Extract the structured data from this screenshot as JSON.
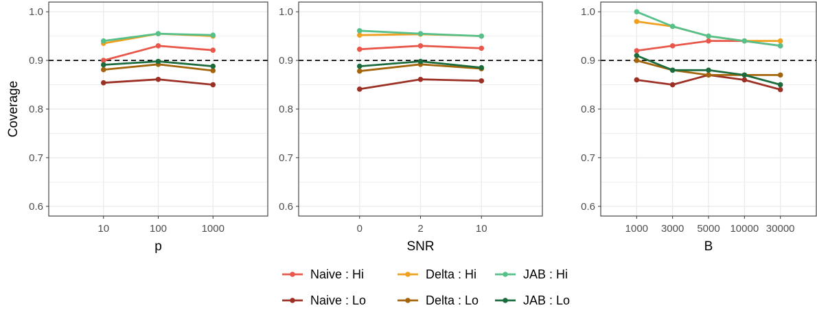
{
  "chart_data": [
    {
      "type": "line",
      "xlabel": "p",
      "ylabel": "Coverage",
      "categories": [
        "10",
        "100",
        "1000"
      ],
      "ylim": [
        0.58,
        1.02
      ],
      "yticks": [
        "0.6",
        "0.7",
        "0.8",
        "0.9",
        "1.0"
      ],
      "reference_line": 0.9,
      "series": [
        {
          "name": "Naive : Hi",
          "values": [
            0.9,
            0.93,
            0.921
          ]
        },
        {
          "name": "Delta : Hi",
          "values": [
            0.935,
            0.955,
            0.95
          ]
        },
        {
          "name": "JAB : Hi",
          "values": [
            0.94,
            0.955,
            0.952
          ]
        },
        {
          "name": "Naive : Lo",
          "values": [
            0.854,
            0.861,
            0.85
          ]
        },
        {
          "name": "Delta : Lo",
          "values": [
            0.881,
            0.892,
            0.879
          ]
        },
        {
          "name": "JAB : Lo",
          "values": [
            0.891,
            0.898,
            0.888
          ]
        }
      ]
    },
    {
      "type": "line",
      "xlabel": "SNR",
      "ylabel": "",
      "categories": [
        "0",
        "2",
        "10"
      ],
      "ylim": [
        0.58,
        1.02
      ],
      "yticks": [
        "0.6",
        "0.7",
        "0.8",
        "0.9",
        "1.0"
      ],
      "reference_line": 0.9,
      "series": [
        {
          "name": "Naive : Hi",
          "values": [
            0.923,
            0.93,
            0.925
          ]
        },
        {
          "name": "Delta : Hi",
          "values": [
            0.952,
            0.954,
            0.95
          ]
        },
        {
          "name": "JAB : Hi",
          "values": [
            0.961,
            0.955,
            0.95
          ]
        },
        {
          "name": "Naive : Lo",
          "values": [
            0.841,
            0.861,
            0.858
          ]
        },
        {
          "name": "Delta : Lo",
          "values": [
            0.878,
            0.892,
            0.883
          ]
        },
        {
          "name": "JAB : Lo",
          "values": [
            0.888,
            0.898,
            0.885
          ]
        }
      ]
    },
    {
      "type": "line",
      "xlabel": "B",
      "ylabel": "",
      "categories": [
        "1000",
        "3000",
        "5000",
        "10000",
        "30000"
      ],
      "ylim": [
        0.58,
        1.02
      ],
      "yticks": [
        "0.6",
        "0.7",
        "0.8",
        "0.9",
        "1.0"
      ],
      "reference_line": 0.9,
      "series": [
        {
          "name": "Naive : Hi",
          "values": [
            0.92,
            0.93,
            0.94,
            0.94,
            0.93
          ]
        },
        {
          "name": "Delta : Hi",
          "values": [
            0.98,
            0.97,
            0.95,
            0.94,
            0.94
          ]
        },
        {
          "name": "JAB : Hi",
          "values": [
            1.0,
            0.97,
            0.95,
            0.94,
            0.93
          ]
        },
        {
          "name": "Naive : Lo",
          "values": [
            0.86,
            0.85,
            0.87,
            0.86,
            0.84
          ]
        },
        {
          "name": "Delta : Lo",
          "values": [
            0.9,
            0.88,
            0.87,
            0.87,
            0.87
          ]
        },
        {
          "name": "JAB : Lo",
          "values": [
            0.91,
            0.88,
            0.88,
            0.87,
            0.85
          ]
        }
      ]
    }
  ],
  "legend": {
    "placement": "bottom",
    "items": [
      {
        "name": "Naive : Hi",
        "color": "#e8574a"
      },
      {
        "name": "Delta : Hi",
        "color": "#f0a020"
      },
      {
        "name": "JAB : Hi",
        "color": "#55c08a"
      },
      {
        "name": "Naive : Lo",
        "color": "#9c3024"
      },
      {
        "name": "Delta : Lo",
        "color": "#a3640c"
      },
      {
        "name": "JAB : Lo",
        "color": "#1c6b3c"
      }
    ]
  },
  "colors": {
    "Naive : Hi": "#e8574a",
    "Delta : Hi": "#f0a020",
    "JAB : Hi": "#55c08a",
    "Naive : Lo": "#9c3024",
    "Delta : Lo": "#a3640c",
    "JAB : Lo": "#1c6b3c",
    "grid": "#ebebeb",
    "panel_border": "#333333"
  }
}
